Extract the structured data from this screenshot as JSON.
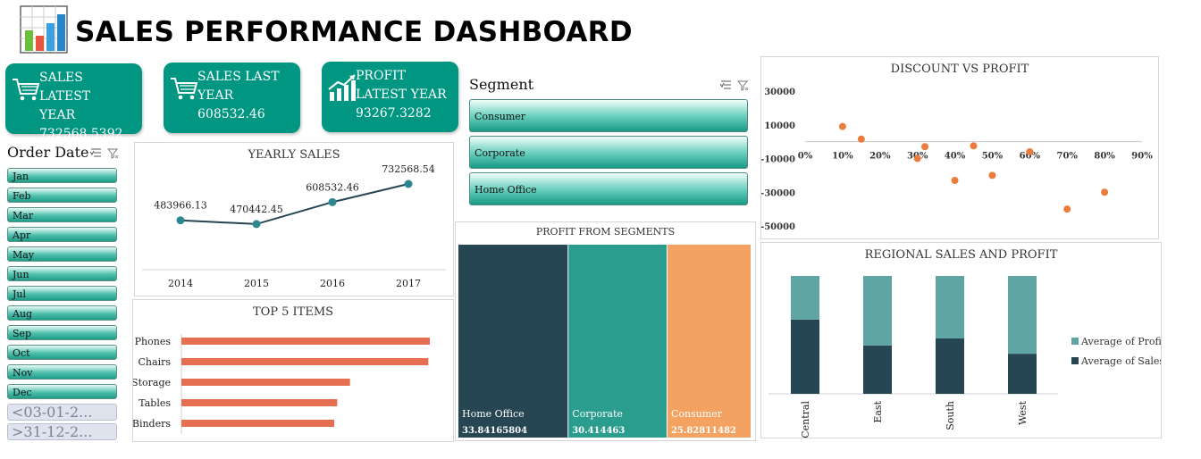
{
  "header": {
    "title": "SALES PERFORMANCE DASHBOARD",
    "logo_icon": "bar-chart-logo-icon"
  },
  "kpis": [
    {
      "line1": "SALES LATEST",
      "line2": "YEAR",
      "value": "732568.5392",
      "icon": "shopping-cart-icon"
    },
    {
      "line1": "SALES LAST",
      "line2": "YEAR",
      "value": "608532.46",
      "icon": "shopping-cart-icon"
    },
    {
      "line1": "PROFIT",
      "line2": "LATEST YEAR",
      "value": "93267.3282",
      "icon": "growth-chart-icon"
    }
  ],
  "order_date_slicer": {
    "title": "Order Date",
    "months": [
      "Jan",
      "Feb",
      "Mar",
      "Apr",
      "May",
      "Jun",
      "Jul",
      "Aug",
      "Sep",
      "Oct",
      "Nov",
      "Dec"
    ],
    "range_start": "<03-01-2...",
    "range_end": ">31-12-2..."
  },
  "segment_slicer": {
    "title": "Segment",
    "items": [
      "Consumer",
      "Corporate",
      "Home Office"
    ]
  },
  "colors": {
    "teal": "#009681",
    "navy": "#264653",
    "green": "#2a9d8f",
    "orange": "#f4a261",
    "coral": "#e76f51",
    "profit_bar": "#5fa5a3",
    "sales_bar": "#264653"
  },
  "chart_data": [
    {
      "id": "yearly",
      "type": "line",
      "title": "YEARLY SALES",
      "categories": [
        "2014",
        "2015",
        "2016",
        "2017"
      ],
      "values": [
        483966.13,
        470442.45,
        608532.46,
        732568.54
      ],
      "labels": [
        "483966.13",
        "470442.45",
        "608532.46",
        "732568.54"
      ]
    },
    {
      "id": "top5",
      "type": "bar",
      "title": "TOP 5 ITEMS",
      "categories": [
        "Phones",
        "Chairs",
        "Storage",
        "Tables",
        "Binders"
      ],
      "values": [
        330000,
        328000,
        224000,
        207000,
        203000
      ]
    },
    {
      "id": "segments",
      "type": "bar",
      "title": "PROFIT FROM SEGMENTS",
      "categories": [
        "Home Office",
        "Corporate",
        "Consumer"
      ],
      "values": [
        33.84165804,
        30.414463,
        25.82811482
      ],
      "labels": [
        "33.84165804",
        "30.414463",
        "25.82811482"
      ]
    },
    {
      "id": "scatter",
      "type": "scatter",
      "title": "DISCOUNT VS PROFIT",
      "points": [
        {
          "x": 10,
          "y": 9000
        },
        {
          "x": 15,
          "y": 1500
        },
        {
          "x": 30,
          "y": -10000
        },
        {
          "x": 32,
          "y": -3000
        },
        {
          "x": 40,
          "y": -23000
        },
        {
          "x": 45,
          "y": -2500
        },
        {
          "x": 50,
          "y": -20000
        },
        {
          "x": 60,
          "y": -6000
        },
        {
          "x": 70,
          "y": -40000
        },
        {
          "x": 80,
          "y": -30000
        }
      ],
      "x_ticks": [
        "0%",
        "10%",
        "20%",
        "30%",
        "40%",
        "50%",
        "60%",
        "70%",
        "80%",
        "90%"
      ],
      "y_ticks": [
        "30000",
        "10000",
        "-10000",
        "-30000",
        "-50000"
      ],
      "xlim": [
        0,
        90
      ],
      "ylim": [
        -50000,
        30000
      ]
    },
    {
      "id": "regional",
      "type": "bar",
      "title": "REGIONAL SALES AND PROFIT",
      "categories": [
        "Central",
        "East",
        "South",
        "West"
      ],
      "series": [
        {
          "name": "Average of Sales",
          "values": [
            0.63,
            0.41,
            0.47,
            0.34
          ]
        },
        {
          "name": "Average of Profit",
          "values": [
            0.37,
            0.59,
            0.53,
            0.66
          ]
        }
      ],
      "legend": [
        "Average of Profit",
        "Average of Sales"
      ]
    }
  ]
}
